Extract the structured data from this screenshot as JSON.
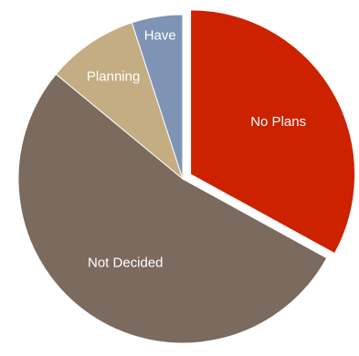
{
  "chart_data": {
    "type": "pie",
    "title": "",
    "legend": "none",
    "exploded": "No Plans",
    "slices": [
      {
        "label": "No Plans",
        "value": 33,
        "color": "#cc2200"
      },
      {
        "label": "Not Decided",
        "value": 53,
        "color": "#7b6a5e"
      },
      {
        "label": "Planning",
        "value": 9,
        "color": "#c4ad82"
      },
      {
        "label": "Have",
        "value": 5,
        "color": "#7f93b5"
      }
    ]
  }
}
